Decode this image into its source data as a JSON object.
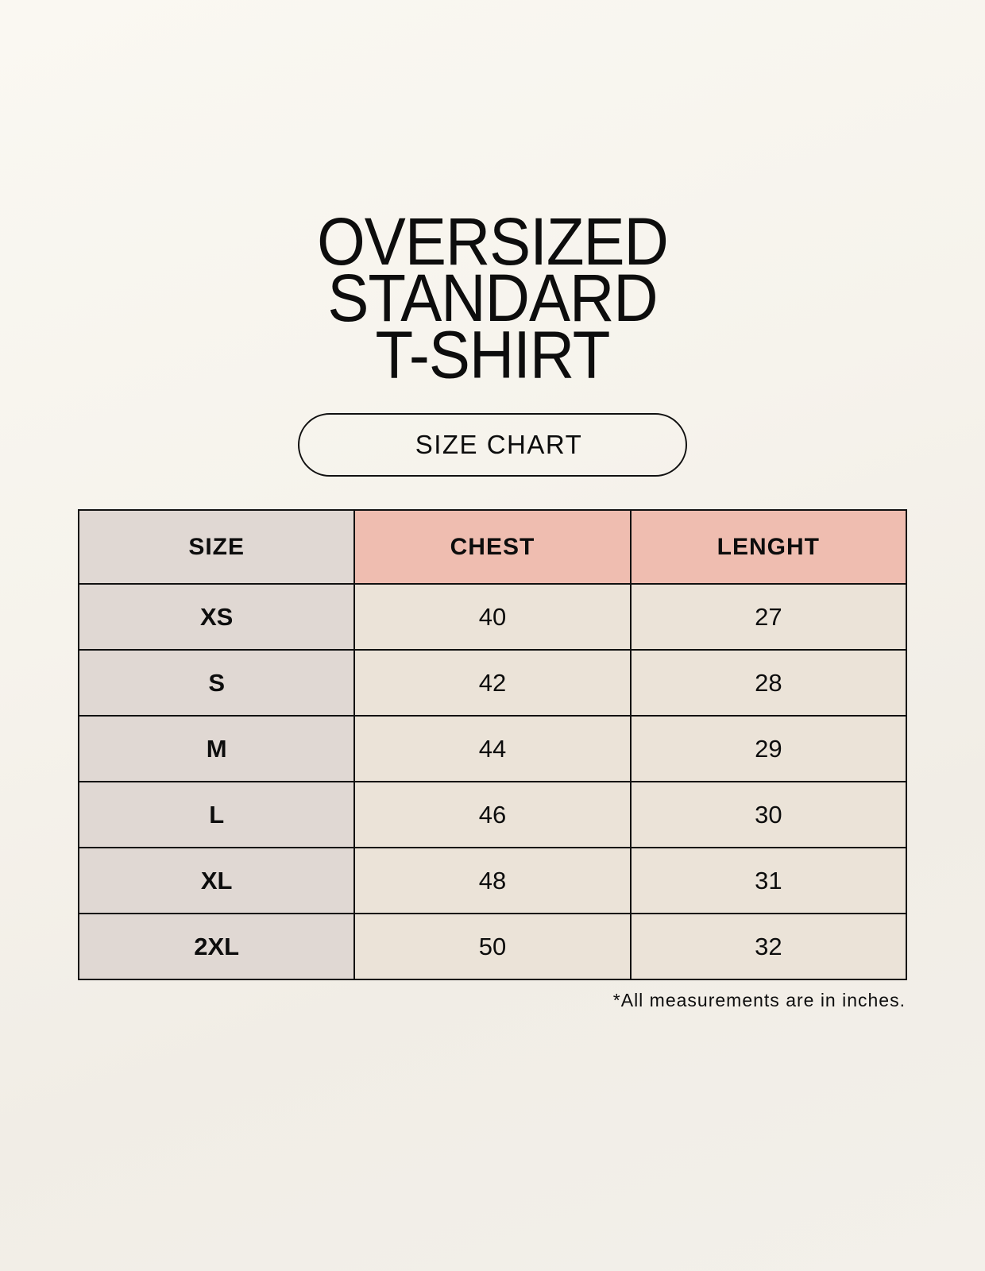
{
  "title_lines": [
    "OVERSIZED",
    "STANDARD",
    "T-SHIRT"
  ],
  "badge": "SIZE CHART",
  "table": {
    "headers": [
      "SIZE",
      "CHEST",
      "LENGHT"
    ],
    "rows": [
      [
        "XS",
        "40",
        "27"
      ],
      [
        "S",
        "42",
        "28"
      ],
      [
        "M",
        "44",
        "29"
      ],
      [
        "L",
        "46",
        "30"
      ],
      [
        "XL",
        "48",
        "31"
      ],
      [
        "2XL",
        "50",
        "32"
      ]
    ]
  },
  "footnote": "*All measurements are in inches.",
  "colors": {
    "background": "#f8f5ee",
    "size_column": "#e0d8d3",
    "header_accent": "#efbdb0",
    "cell": "#ebe3d8",
    "border": "#111111"
  }
}
